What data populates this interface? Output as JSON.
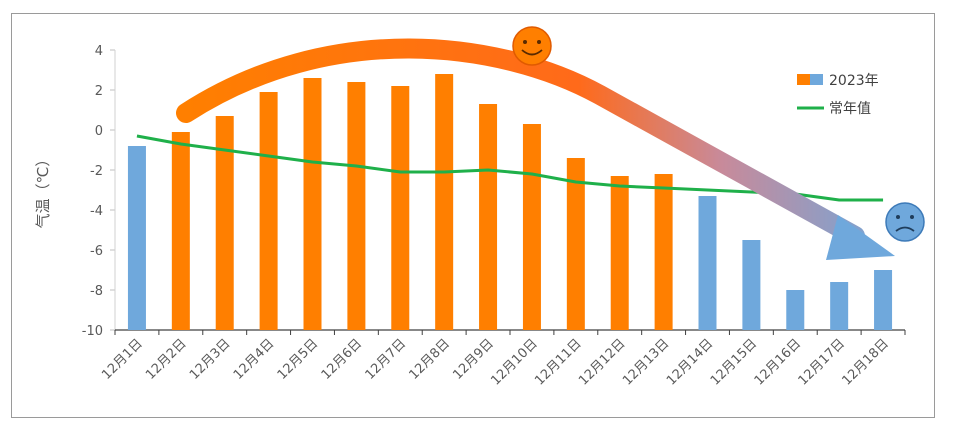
{
  "chart_data": {
    "type": "bar",
    "ylabel": "气温（℃）",
    "ylim": [
      -10,
      4
    ],
    "yticks": [
      4,
      2,
      0,
      -2,
      -4,
      -6,
      -8,
      -10
    ],
    "categories": [
      "12月1日",
      "12月2日",
      "12月3日",
      "12月4日",
      "12月5日",
      "12月6日",
      "12月7日",
      "12月8日",
      "12月9日",
      "12月10日",
      "12月11日",
      "12月12日",
      "12月13日",
      "12月14日",
      "12月15日",
      "12月16日",
      "12月17日",
      "12月18日"
    ],
    "series": [
      {
        "name": "2023年",
        "type": "bar",
        "values": [
          -0.8,
          -0.1,
          0.7,
          1.9,
          2.6,
          2.4,
          2.2,
          2.8,
          1.3,
          0.3,
          -1.4,
          -2.3,
          -2.2,
          -3.3,
          -5.5,
          -8.0,
          -7.6,
          -7.0
        ],
        "bar_colors": [
          "#6fa8dc",
          "#ff7f00",
          "#ff7f00",
          "#ff7f00",
          "#ff7f00",
          "#ff7f00",
          "#ff7f00",
          "#ff7f00",
          "#ff7f00",
          "#ff7f00",
          "#ff7f00",
          "#ff7f00",
          "#ff7f00",
          "#6fa8dc",
          "#6fa8dc",
          "#6fa8dc",
          "#6fa8dc",
          "#6fa8dc"
        ]
      },
      {
        "name": "常年值",
        "type": "line",
        "color": "#1fb04a",
        "values": [
          -0.3,
          -0.7,
          -1.0,
          -1.3,
          -1.6,
          -1.8,
          -2.1,
          -2.1,
          -2.0,
          -2.2,
          -2.6,
          -2.8,
          -2.9,
          -3.0,
          -3.1,
          -3.2,
          -3.5,
          -3.5
        ]
      }
    ],
    "legend_position": "right",
    "colors": {
      "warm_bar": "#ff7f00",
      "cold_bar": "#6fa8dc",
      "normal_line": "#1fb04a",
      "axis": "#d9d9d9"
    },
    "annotations": {
      "trend_arrow": "warm-to-cold",
      "happy_face_icon": "smiling-face-icon",
      "sad_face_icon": "frowning-face-icon"
    }
  }
}
